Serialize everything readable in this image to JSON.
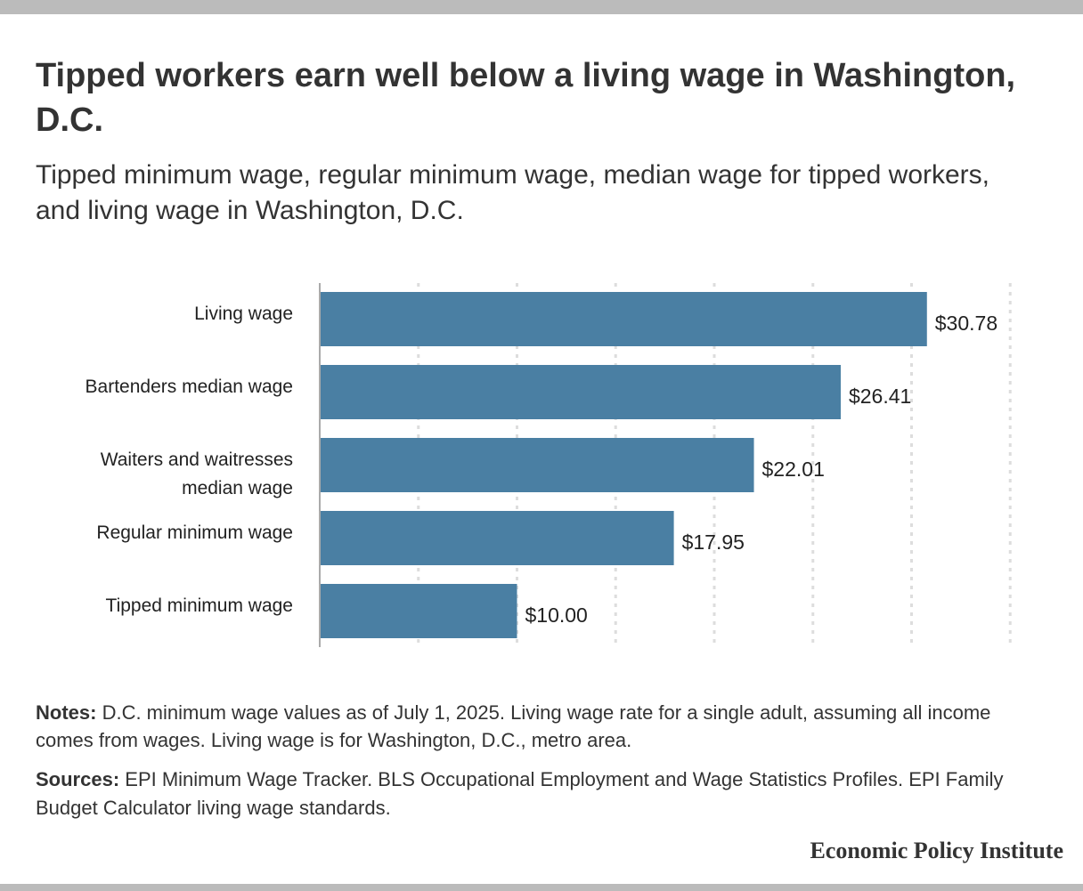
{
  "title": "Tipped workers earn well below a living wage in Washington, D.C.",
  "subtitle": "Tipped minimum wage, regular minimum wage, median wage for tipped workers, and living wage in Washington, D.C.",
  "chart_data": {
    "type": "bar",
    "orientation": "horizontal",
    "categories": [
      [
        "Living wage"
      ],
      [
        "Bartenders median wage"
      ],
      [
        "Waiters and waitresses",
        "median wage"
      ],
      [
        "Regular minimum wage"
      ],
      [
        "Tipped minimum wage"
      ]
    ],
    "values": [
      30.78,
      26.41,
      22.01,
      17.95,
      10.0
    ],
    "value_labels": [
      "$30.78",
      "$26.41",
      "$22.01",
      "$17.95",
      "$10.00"
    ],
    "xlim": [
      0,
      35
    ],
    "grid": true,
    "bar_color": "#4a7fa3",
    "grid_color": "#dddddd",
    "axis_color": "#aaaaaa"
  },
  "notes": {
    "label": "Notes:",
    "text": " D.C. minimum wage values as of July 1, 2025. Living wage rate for a single adult, assuming all income comes from wages. Living wage is for Washington, D.C., metro area."
  },
  "sources": {
    "label": "Sources:",
    "text": " EPI Minimum Wage Tracker. BLS Occupational Employment and Wage Statistics Profiles. EPI Family Budget Calculator living wage standards."
  },
  "brand": "Economic Policy Institute"
}
